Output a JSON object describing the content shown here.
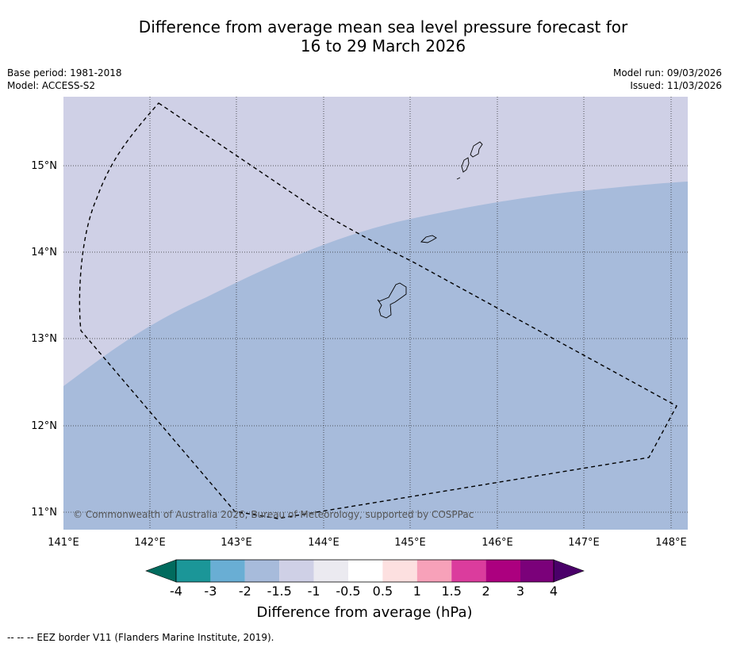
{
  "title_line1": "Difference from average mean sea level pressure forecast for",
  "title_line2": "16 to 29 March 2026",
  "meta_left": {
    "base_period": "Base period: 1981-2018",
    "model": "Model: ACCESS-S2"
  },
  "meta_right": {
    "model_run": "Model run: 09/03/2026",
    "issued": "Issued: 11/03/2026"
  },
  "lon_labels": [
    "141°E",
    "142°E",
    "143°E",
    "144°E",
    "145°E",
    "146°E",
    "147°E",
    "148°E"
  ],
  "lat_labels": [
    "15°N",
    "14°N",
    "13°N",
    "12°N",
    "11°N"
  ],
  "copyright": "© Commonwealth of Australia 2026, Bureau of Meteorology, supported by COSPPac",
  "colorbar": {
    "labels": [
      "-4",
      "-3",
      "-2",
      "-1.5",
      "-1",
      "-0.5",
      "0.5",
      "1",
      "1.5",
      "2",
      "3",
      "4"
    ],
    "colors": [
      "#016b5e",
      "#1b9698",
      "#69aed4",
      "#a7bbdb",
      "#cfd0e6",
      "#ebeaf0",
      "#ffffff",
      "#fde0e0",
      "#f7a1b9",
      "#db3c9d",
      "#ac007f",
      "#7b017a",
      "#4a0069"
    ],
    "title": "Difference from average (hPa)"
  },
  "regions": {
    "north_color": "#cfd0e6",
    "south_color": "#a7bbdb",
    "north_category": "-1.5 to -1",
    "south_category": "-2 to -1.5"
  },
  "footnote": "--  --  -- EEZ border V11 (Flanders Marine Institute, 2019)."
}
